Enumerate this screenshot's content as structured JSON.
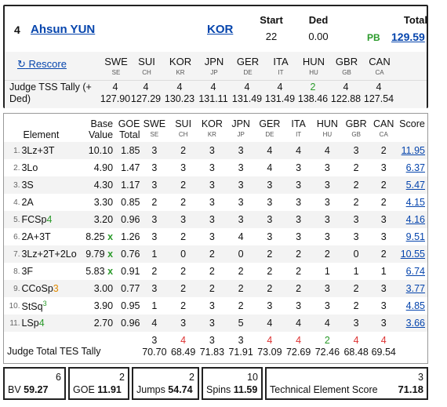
{
  "header": {
    "rank": "4",
    "skater": "Ahsun YUN",
    "nation": "KOR",
    "start_label": "Start",
    "start_value": "22",
    "ded_label": "Ded",
    "ded_value": "0.00",
    "total_label": "Total",
    "pb_label": "PB",
    "total_value": "129.59",
    "rescore": "Rescore"
  },
  "judges": [
    {
      "code": "SWE",
      "sub": "SE"
    },
    {
      "code": "SUI",
      "sub": "CH"
    },
    {
      "code": "KOR",
      "sub": "KR"
    },
    {
      "code": "JPN",
      "sub": "JP"
    },
    {
      "code": "GER",
      "sub": "DE"
    },
    {
      "code": "ITA",
      "sub": "IT"
    },
    {
      "code": "HUN",
      "sub": "HU"
    },
    {
      "code": "GBR",
      "sub": "GB"
    },
    {
      "code": "CAN",
      "sub": "CA"
    }
  ],
  "tss_tally": {
    "label": "Judge TSS Tally (+ Ded)",
    "ranks": [
      "4",
      "4",
      "4",
      "4",
      "4",
      "4",
      "2",
      "4",
      "4"
    ],
    "values": [
      "127.90",
      "127.29",
      "130.23",
      "131.11",
      "131.49",
      "131.49",
      "138.46",
      "122.88",
      "127.54"
    ]
  },
  "elements_table": {
    "col_element": "Element",
    "col_base": "Base Value",
    "col_goe": "GOE Total",
    "col_score": "Score",
    "rows": [
      {
        "no": "1.",
        "name": "3Lz+3T",
        "suffix": "",
        "base": "10.10",
        "x": "",
        "goe": "1.85",
        "marks": [
          "3",
          "2",
          "3",
          "3",
          "4",
          "4",
          "4",
          "3",
          "2"
        ],
        "score": "11.95"
      },
      {
        "no": "2.",
        "name": "3Lo",
        "suffix": "",
        "base": "4.90",
        "x": "",
        "goe": "1.47",
        "marks": [
          "3",
          "3",
          "3",
          "3",
          "4",
          "3",
          "3",
          "2",
          "3"
        ],
        "score": "6.37"
      },
      {
        "no": "3.",
        "name": "3S",
        "suffix": "",
        "base": "4.30",
        "x": "",
        "goe": "1.17",
        "marks": [
          "3",
          "2",
          "3",
          "3",
          "3",
          "3",
          "3",
          "2",
          "2"
        ],
        "score": "5.47"
      },
      {
        "no": "4.",
        "name": "2A",
        "suffix": "",
        "base": "3.30",
        "x": "",
        "goe": "0.85",
        "marks": [
          "2",
          "2",
          "3",
          "3",
          "3",
          "3",
          "3",
          "2",
          "2"
        ],
        "score": "4.15"
      },
      {
        "no": "5.",
        "name": "FCSp",
        "suffix": "4",
        "base": "3.20",
        "x": "",
        "goe": "0.96",
        "marks": [
          "3",
          "3",
          "3",
          "3",
          "3",
          "3",
          "3",
          "3",
          "3"
        ],
        "score": "4.16"
      },
      {
        "no": "6.",
        "name": "2A+3T",
        "suffix": "",
        "base": "8.25",
        "x": "x",
        "goe": "1.26",
        "marks": [
          "3",
          "2",
          "3",
          "4",
          "3",
          "3",
          "3",
          "3",
          "3"
        ],
        "score": "9.51"
      },
      {
        "no": "7.",
        "name": "3Lz+2T+2Lo",
        "suffix": "",
        "base": "9.79",
        "x": "x",
        "goe": "0.76",
        "marks": [
          "1",
          "0",
          "2",
          "0",
          "2",
          "2",
          "2",
          "0",
          "2"
        ],
        "score": "10.55"
      },
      {
        "no": "8.",
        "name": "3F",
        "suffix": "",
        "base": "5.83",
        "x": "x",
        "goe": "0.91",
        "marks": [
          "2",
          "2",
          "2",
          "2",
          "2",
          "2",
          "1",
          "1",
          "1"
        ],
        "score": "6.74"
      },
      {
        "no": "9.",
        "name": "CCoSp",
        "suffix": "3",
        "base": "3.00",
        "x": "",
        "goe": "0.77",
        "marks": [
          "3",
          "2",
          "2",
          "2",
          "2",
          "2",
          "3",
          "2",
          "3"
        ],
        "score": "3.77"
      },
      {
        "no": "10.",
        "name": "StSq",
        "suffix": "3",
        "base": "3.90",
        "x": "",
        "goe": "0.95",
        "marks": [
          "1",
          "2",
          "3",
          "2",
          "3",
          "3",
          "3",
          "2",
          "3"
        ],
        "score": "4.85"
      },
      {
        "no": "11.",
        "name": "LSp",
        "suffix": "4",
        "base": "2.70",
        "x": "",
        "goe": "0.96",
        "marks": [
          "4",
          "3",
          "3",
          "5",
          "4",
          "4",
          "4",
          "3",
          "3"
        ],
        "score": "3.66"
      }
    ]
  },
  "tes_tally": {
    "label": "Judge Total TES Tally",
    "ranks": [
      "3",
      "4",
      "3",
      "3",
      "4",
      "4",
      "2",
      "4",
      "4"
    ],
    "values": [
      "70.70",
      "68.49",
      "71.83",
      "71.91",
      "73.09",
      "72.69",
      "72.46",
      "68.48",
      "69.54"
    ]
  },
  "summary": [
    {
      "label": "BV",
      "num": "6",
      "value": "59.27"
    },
    {
      "label": "GOE",
      "num": "2",
      "value": "11.91"
    },
    {
      "label": "Jumps",
      "num": "2",
      "value": "54.74"
    },
    {
      "label": "Spins",
      "num": "10",
      "value": "11.59"
    },
    {
      "label": "Technical Element Score",
      "num": "3",
      "value": "71.18"
    }
  ],
  "colors": {
    "link": "#0645ad",
    "green": "#2a9a2a",
    "red": "#dd3333",
    "orange": "#e08a00"
  }
}
